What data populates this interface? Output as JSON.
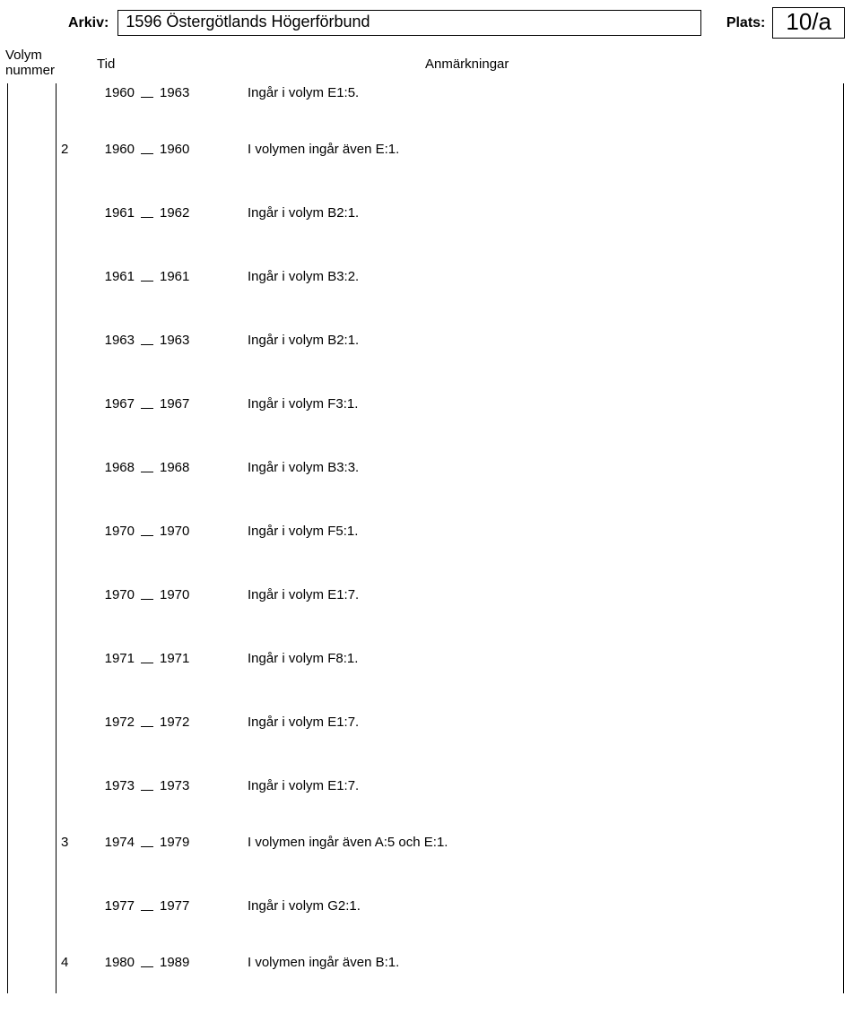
{
  "header": {
    "arkiv_label": "Arkiv:",
    "arkiv_value": "1596 Östergötlands Högerförbund",
    "plats_label": "Plats:",
    "plats_value": "10/a"
  },
  "columns": {
    "volym": "Volym\nnummer",
    "tid": "Tid",
    "anm": "Anmärkningar"
  },
  "rows": [
    {
      "num": "",
      "y1": "1960",
      "y2": "1963",
      "note": "Ingår i volym E1:5.",
      "cls": "first"
    },
    {
      "num": "2",
      "y1": "1960",
      "y2": "1960",
      "note": "I volymen ingår även E:1.",
      "cls": "group-start"
    },
    {
      "num": "",
      "y1": "1961",
      "y2": "1962",
      "note": "Ingår i volym B2:1.",
      "cls": "sub"
    },
    {
      "num": "",
      "y1": "1961",
      "y2": "1961",
      "note": "Ingår i volym B3:2.",
      "cls": "sub"
    },
    {
      "num": "",
      "y1": "1963",
      "y2": "1963",
      "note": "Ingår i volym B2:1.",
      "cls": "sub"
    },
    {
      "num": "",
      "y1": "1967",
      "y2": "1967",
      "note": "Ingår i volym F3:1.",
      "cls": "sub"
    },
    {
      "num": "",
      "y1": "1968",
      "y2": "1968",
      "note": "Ingår i volym B3:3.",
      "cls": "sub"
    },
    {
      "num": "",
      "y1": "1970",
      "y2": "1970",
      "note": "Ingår i volym F5:1.",
      "cls": "sub"
    },
    {
      "num": "",
      "y1": "1970",
      "y2": "1970",
      "note": "Ingår i volym E1:7.",
      "cls": "sub"
    },
    {
      "num": "",
      "y1": "1971",
      "y2": "1971",
      "note": "Ingår i volym F8:1.",
      "cls": "sub"
    },
    {
      "num": "",
      "y1": "1972",
      "y2": "1972",
      "note": "Ingår i volym E1:7.",
      "cls": "sub"
    },
    {
      "num": "",
      "y1": "1973",
      "y2": "1973",
      "note": "Ingår i volym E1:7.",
      "cls": "sub"
    },
    {
      "num": "3",
      "y1": "1974",
      "y2": "1979",
      "note": "I volymen ingår även A:5 och E:1.",
      "cls": "group-start"
    },
    {
      "num": "",
      "y1": "1977",
      "y2": "1977",
      "note": "Ingår i volym G2:1.",
      "cls": "sub"
    },
    {
      "num": "4",
      "y1": "1980",
      "y2": "1989",
      "note": "I volymen ingår även B:1.",
      "cls": "group-start"
    }
  ]
}
